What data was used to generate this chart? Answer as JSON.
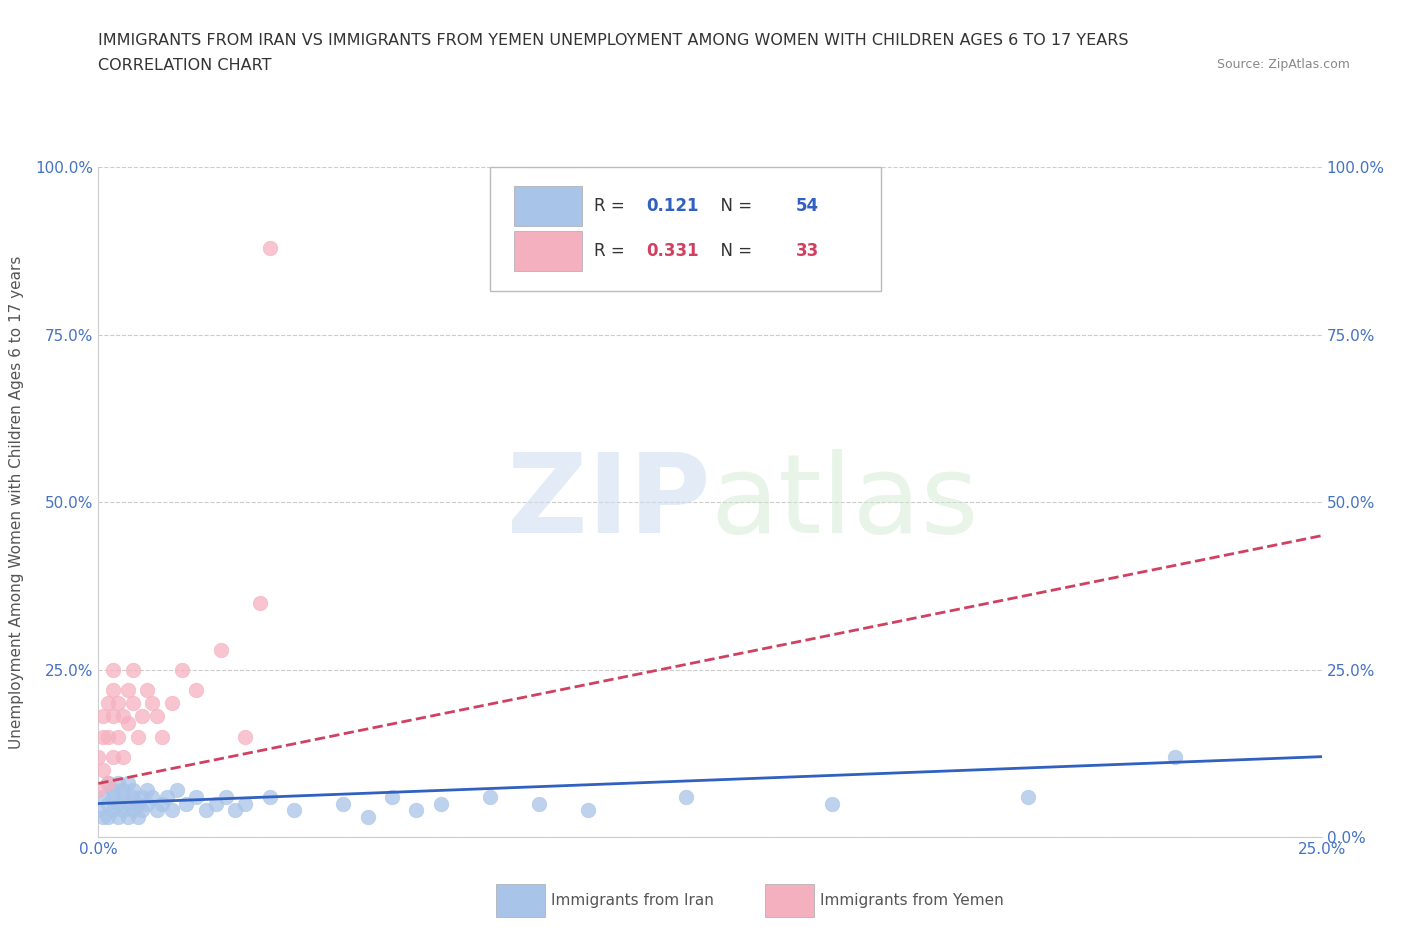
{
  "title_line1": "IMMIGRANTS FROM IRAN VS IMMIGRANTS FROM YEMEN UNEMPLOYMENT AMONG WOMEN WITH CHILDREN AGES 6 TO 17 YEARS",
  "title_line2": "CORRELATION CHART",
  "source_text": "Source: ZipAtlas.com",
  "ylabel": "Unemployment Among Women with Children Ages 6 to 17 years",
  "xlim": [
    0.0,
    0.25
  ],
  "ylim": [
    0.0,
    1.0
  ],
  "iran_R": 0.121,
  "iran_N": 54,
  "yemen_R": 0.331,
  "yemen_N": 33,
  "iran_color": "#a8c4e8",
  "yemen_color": "#f5b0c0",
  "iran_line_color": "#3060c0",
  "yemen_line_color": "#d04060",
  "iran_scatter_x": [
    0.0,
    0.001,
    0.001,
    0.002,
    0.002,
    0.002,
    0.003,
    0.003,
    0.003,
    0.004,
    0.004,
    0.004,
    0.005,
    0.005,
    0.005,
    0.006,
    0.006,
    0.006,
    0.007,
    0.007,
    0.007,
    0.008,
    0.008,
    0.009,
    0.009,
    0.01,
    0.01,
    0.011,
    0.012,
    0.013,
    0.014,
    0.015,
    0.016,
    0.018,
    0.02,
    0.022,
    0.024,
    0.026,
    0.028,
    0.03,
    0.035,
    0.04,
    0.05,
    0.055,
    0.06,
    0.065,
    0.07,
    0.08,
    0.09,
    0.1,
    0.12,
    0.15,
    0.19,
    0.22
  ],
  "iran_scatter_y": [
    0.04,
    0.06,
    0.03,
    0.05,
    0.08,
    0.03,
    0.07,
    0.04,
    0.06,
    0.05,
    0.08,
    0.03,
    0.06,
    0.04,
    0.07,
    0.05,
    0.03,
    0.08,
    0.06,
    0.04,
    0.07,
    0.05,
    0.03,
    0.06,
    0.04,
    0.07,
    0.05,
    0.06,
    0.04,
    0.05,
    0.06,
    0.04,
    0.07,
    0.05,
    0.06,
    0.04,
    0.05,
    0.06,
    0.04,
    0.05,
    0.06,
    0.04,
    0.05,
    0.03,
    0.06,
    0.04,
    0.05,
    0.06,
    0.05,
    0.04,
    0.06,
    0.05,
    0.06,
    0.12
  ],
  "yemen_scatter_x": [
    0.0,
    0.0,
    0.001,
    0.001,
    0.001,
    0.002,
    0.002,
    0.002,
    0.003,
    0.003,
    0.003,
    0.003,
    0.004,
    0.004,
    0.005,
    0.005,
    0.006,
    0.006,
    0.007,
    0.007,
    0.008,
    0.009,
    0.01,
    0.011,
    0.012,
    0.013,
    0.015,
    0.017,
    0.02,
    0.025,
    0.03,
    0.033,
    0.035
  ],
  "yemen_scatter_y": [
    0.12,
    0.07,
    0.18,
    0.1,
    0.15,
    0.2,
    0.15,
    0.08,
    0.25,
    0.18,
    0.12,
    0.22,
    0.2,
    0.15,
    0.18,
    0.12,
    0.22,
    0.17,
    0.25,
    0.2,
    0.15,
    0.18,
    0.22,
    0.2,
    0.18,
    0.15,
    0.2,
    0.25,
    0.22,
    0.28,
    0.15,
    0.35,
    0.88
  ],
  "iran_trendline": [
    0.05,
    0.12
  ],
  "yemen_trendline": [
    0.08,
    0.45
  ],
  "watermark_zip": "ZIP",
  "watermark_atlas": "atlas",
  "background_color": "#ffffff",
  "grid_color": "#cccccc"
}
